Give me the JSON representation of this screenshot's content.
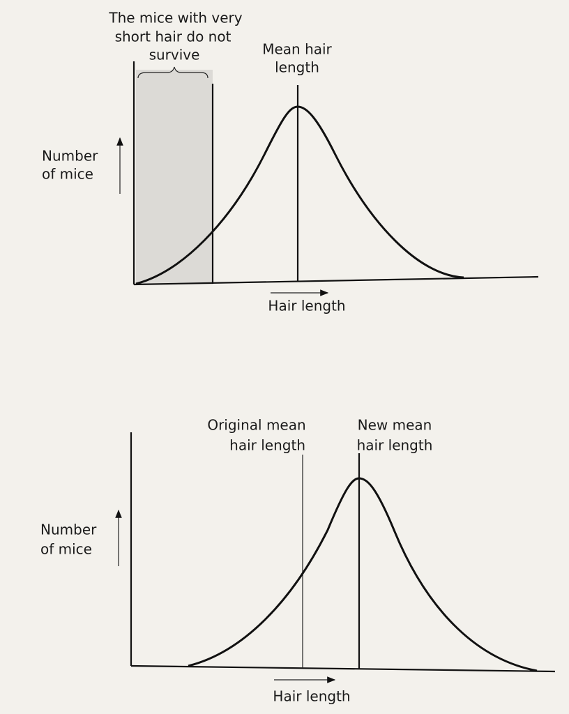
{
  "top_diagram": {
    "annotation": [
      "The mice with very",
      "short hair do not",
      "survive"
    ],
    "mean_label": [
      "Mean hair",
      "length"
    ],
    "y_axis_label": [
      "Number",
      "of mice"
    ],
    "x_axis_label": "Hair length"
  },
  "bottom_diagram": {
    "original_mean_label": [
      "Original mean",
      "hair length"
    ],
    "new_mean_label": [
      "New mean",
      "hair length"
    ],
    "y_axis_label": [
      "Number",
      "of mice"
    ],
    "x_axis_label": "Hair length"
  }
}
